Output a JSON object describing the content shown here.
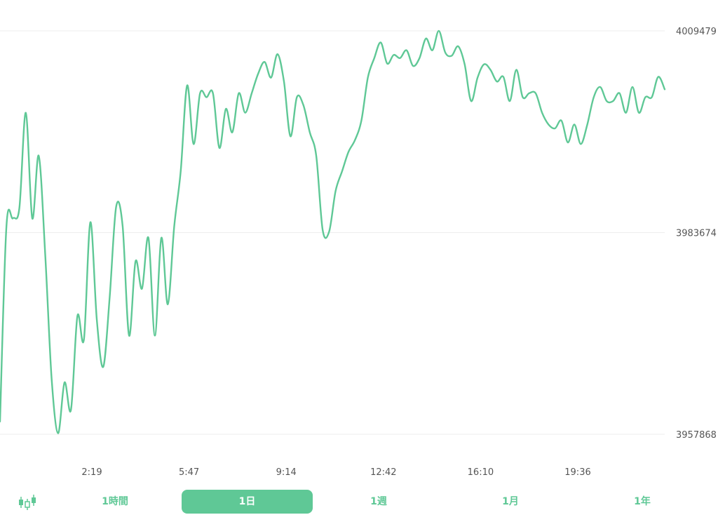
{
  "colors": {
    "line": "#5fc896",
    "accent": "#5fc896",
    "grid": "#eeeeee",
    "tick_text": "#555555"
  },
  "chart_data": {
    "type": "line",
    "title": "",
    "xlabel": "",
    "ylabel": "",
    "x_tick_labels": [
      "2:19",
      "5:47",
      "9:14",
      "12:42",
      "16:10",
      "19:36"
    ],
    "y_tick_labels": [
      "4009479",
      "3983674",
      "3957868"
    ],
    "y_ticks": [
      4009479,
      3983674,
      3957868
    ],
    "ylim": [
      3957868,
      4009479
    ],
    "grid": true,
    "series": [
      {
        "values": [
          3959500,
          3984500,
          3985500,
          3986800,
          3999000,
          3985500,
          3993500,
          3981000,
          3965000,
          3958000,
          3964500,
          3961000,
          3973000,
          3970000,
          3985000,
          3972500,
          3966500,
          3975500,
          3987000,
          3984500,
          3970500,
          3980000,
          3976500,
          3983000,
          3970500,
          3983000,
          3974500,
          3984500,
          3991500,
          4002500,
          3995000,
          4001500,
          4001000,
          4001500,
          3994500,
          3999500,
          3996500,
          4001500,
          3999000,
          4001500,
          4004000,
          4005500,
          4003500,
          4006500,
          4003000,
          3996000,
          4001000,
          4000000,
          3996500,
          3993500,
          3984000,
          3983800,
          3989000,
          3991500,
          3994000,
          3995500,
          3998000,
          4003500,
          4006000,
          4008000,
          4005300,
          4006400,
          4006000,
          4007000,
          4005000,
          4006000,
          4008500,
          4007000,
          4009479,
          4006700,
          4006300,
          4007500,
          4005200,
          4000500,
          4003500,
          4005200,
          4004500,
          4003000,
          4003600,
          4000500,
          4004500,
          4001000,
          4001500,
          4001500,
          3999000,
          3997500,
          3997000,
          3998000,
          3995200,
          3997500,
          3995000,
          3997500,
          4001000,
          4002300,
          4000500,
          4000500,
          4001500,
          3999000,
          4002300,
          3999000,
          4001000,
          4001000,
          4003600,
          4002000
        ]
      }
    ]
  },
  "range_selector": {
    "candle_toggle_icon": "candlestick-chart-icon",
    "options": [
      "1時間",
      "1日",
      "1週",
      "1月",
      "1年"
    ],
    "selected": "1日"
  }
}
